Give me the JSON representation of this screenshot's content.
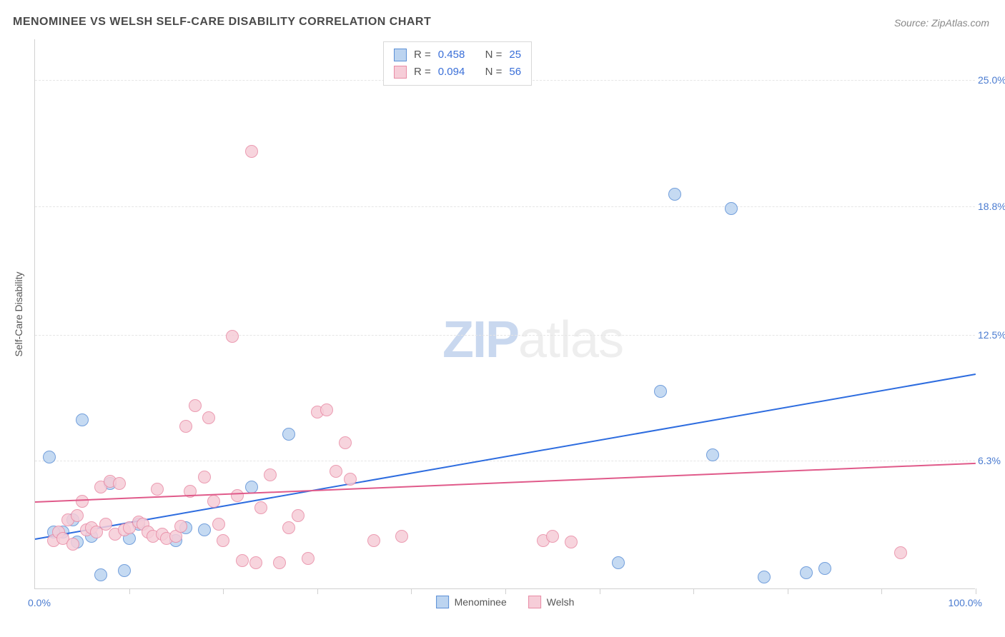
{
  "title": "MENOMINEE VS WELSH SELF-CARE DISABILITY CORRELATION CHART",
  "source": "Source: ZipAtlas.com",
  "ylabel": "Self-Care Disability",
  "watermark": {
    "part1": "ZIP",
    "part2": "atlas"
  },
  "chart": {
    "type": "scatter",
    "background_color": "#ffffff",
    "grid_color": "#e5e5e5",
    "axis_color": "#d0d0d0",
    "xlim": [
      0,
      100
    ],
    "ylim": [
      0,
      27
    ],
    "x_axis_labels": {
      "min": "0.0%",
      "max": "100.0%"
    },
    "y_ticks": [
      6.3,
      12.5,
      18.8,
      25.0
    ],
    "y_tick_labels": [
      "6.3%",
      "12.5%",
      "18.8%",
      "25.0%"
    ],
    "x_ticks": [
      10,
      20,
      30,
      40,
      50,
      60,
      70,
      80,
      90,
      100
    ],
    "tick_label_color": "#4a7bd0",
    "series": [
      {
        "name": "Menominee",
        "marker_fill": "#bcd4f0",
        "marker_stroke": "#5b8fd6",
        "marker_radius": 9,
        "marker_opacity": 0.85,
        "trend_color": "#2d6cdf",
        "trend": {
          "x1": 0,
          "y1": 2.5,
          "x2": 100,
          "y2": 10.6
        },
        "stats": {
          "R": "0.458",
          "N": "25"
        },
        "points": [
          [
            1.5,
            6.5
          ],
          [
            5.0,
            8.3
          ],
          [
            7.0,
            0.7
          ],
          [
            9.5,
            0.9
          ],
          [
            8.0,
            5.2
          ],
          [
            3.0,
            2.8
          ],
          [
            4.5,
            2.3
          ],
          [
            6.0,
            2.6
          ],
          [
            10.0,
            2.5
          ],
          [
            11.0,
            3.2
          ],
          [
            15.0,
            2.4
          ],
          [
            18.0,
            2.9
          ],
          [
            16.0,
            3.0
          ],
          [
            27.0,
            7.6
          ],
          [
            23.0,
            5.0
          ],
          [
            62.0,
            1.3
          ],
          [
            66.5,
            9.7
          ],
          [
            68.0,
            19.4
          ],
          [
            72.0,
            6.6
          ],
          [
            74.0,
            18.7
          ],
          [
            77.5,
            0.6
          ],
          [
            84.0,
            1.0
          ],
          [
            82.0,
            0.8
          ],
          [
            4.0,
            3.4
          ],
          [
            2.0,
            2.8
          ]
        ]
      },
      {
        "name": "Welsh",
        "marker_fill": "#f6cdd8",
        "marker_stroke": "#e88ba5",
        "marker_radius": 9,
        "marker_opacity": 0.85,
        "trend_color": "#e05a8a",
        "trend": {
          "x1": 0,
          "y1": 4.3,
          "x2": 100,
          "y2": 6.2
        },
        "stats": {
          "R": "0.094",
          "N": "56"
        },
        "points": [
          [
            2.0,
            2.4
          ],
          [
            2.5,
            2.8
          ],
          [
            3.0,
            2.5
          ],
          [
            3.5,
            3.4
          ],
          [
            4.0,
            2.2
          ],
          [
            4.5,
            3.6
          ],
          [
            5.0,
            4.3
          ],
          [
            5.5,
            2.9
          ],
          [
            6.0,
            3.0
          ],
          [
            6.5,
            2.8
          ],
          [
            7.0,
            5.0
          ],
          [
            7.5,
            3.2
          ],
          [
            8.0,
            5.3
          ],
          [
            8.5,
            2.7
          ],
          [
            9.0,
            5.2
          ],
          [
            9.5,
            2.9
          ],
          [
            10.0,
            3.0
          ],
          [
            11.0,
            3.3
          ],
          [
            11.5,
            3.2
          ],
          [
            12.0,
            2.8
          ],
          [
            12.5,
            2.6
          ],
          [
            13.0,
            4.9
          ],
          [
            13.5,
            2.7
          ],
          [
            14.0,
            2.5
          ],
          [
            15.0,
            2.6
          ],
          [
            15.5,
            3.1
          ],
          [
            16.0,
            8.0
          ],
          [
            16.5,
            4.8
          ],
          [
            17.0,
            9.0
          ],
          [
            18.0,
            5.5
          ],
          [
            18.5,
            8.4
          ],
          [
            19.0,
            4.3
          ],
          [
            19.5,
            3.2
          ],
          [
            20.0,
            2.4
          ],
          [
            21.0,
            12.4
          ],
          [
            21.5,
            4.6
          ],
          [
            22.0,
            1.4
          ],
          [
            23.0,
            21.5
          ],
          [
            23.5,
            1.3
          ],
          [
            25.0,
            5.6
          ],
          [
            26.0,
            1.3
          ],
          [
            28.0,
            3.6
          ],
          [
            29.0,
            1.5
          ],
          [
            30.0,
            8.7
          ],
          [
            31.0,
            8.8
          ],
          [
            32.0,
            5.8
          ],
          [
            33.0,
            7.2
          ],
          [
            33.5,
            5.4
          ],
          [
            36.0,
            2.4
          ],
          [
            39.0,
            2.6
          ],
          [
            54.0,
            2.4
          ],
          [
            55.0,
            2.6
          ],
          [
            57.0,
            2.3
          ],
          [
            92.0,
            1.8
          ],
          [
            24.0,
            4.0
          ],
          [
            27.0,
            3.0
          ]
        ]
      }
    ]
  },
  "legend_box_labels": {
    "R": "R =",
    "N": "N ="
  }
}
